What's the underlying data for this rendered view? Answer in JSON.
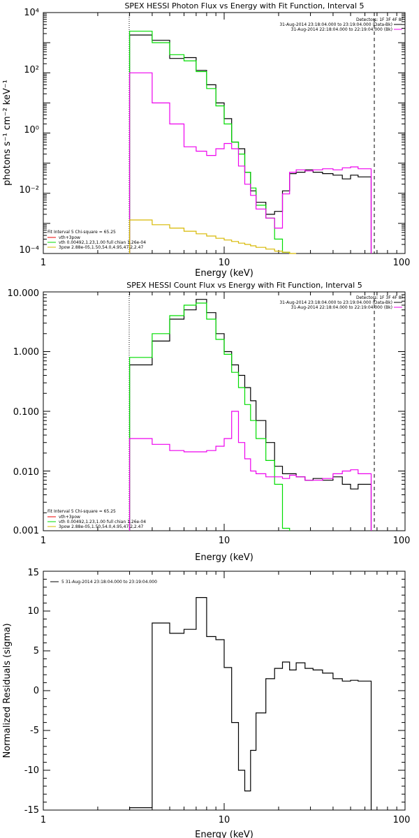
{
  "colors": {
    "data": "#000000",
    "model": "#ee00ee",
    "vth": "#00dd00",
    "pow": "#d7b800",
    "total_red": "#ee0000",
    "background": "#ffffff"
  },
  "chart_data": [
    {
      "type": "line",
      "step": true,
      "title": "SPEX HESSI Photon Flux vs Energy with Fit Function, Interval 5",
      "xlabel": "Energy (keV)",
      "ylabel": "photons s⁻¹ cm⁻² keV⁻¹",
      "xscale": "log",
      "yscale": "log",
      "xlim": [
        1,
        100
      ],
      "ylim": [
        0.0001,
        10000
      ],
      "x_ticks": [
        "1",
        "10",
        "100"
      ],
      "y_ticks": [
        "10⁻⁴",
        "10⁻²",
        "10⁰",
        "10²",
        "10⁴"
      ],
      "fit_range": [
        3,
        65
      ],
      "legend_top_right": {
        "header": "Detectors: 1F 3F 4F 8F",
        "entries": [
          "31-Aug-2014 23:18:04.000 to 23:19:04.000 (Data-Bk)",
          "31-Aug-2014 22:18:04.000 to 22:19:04.000 (Bk)"
        ]
      },
      "legend_bottom_left": {
        "header": "Fit Interval 5   Chi-square = 65.25",
        "entries": [
          "vth+3pow",
          "vth 0.00492,1.23,1.00  full chian 1.26e-04",
          "3pow 2.88e-05,1.50,54.0,4.95,47.2,2.47"
        ]
      },
      "edges": [
        3,
        4,
        5,
        6,
        7,
        8,
        9,
        10,
        11,
        12,
        13,
        14,
        15,
        17,
        19,
        21,
        23,
        25,
        28,
        31,
        35,
        40,
        45,
        50,
        55,
        65
      ],
      "series": [
        {
          "label": "Data-Bk",
          "color": "#000000",
          "values": [
            1800,
            1200,
            300,
            320,
            120,
            40,
            10,
            3.0,
            0.5,
            0.3,
            0.05,
            0.012,
            0.005,
            0.002,
            0.0025,
            0.012,
            0.045,
            0.05,
            0.06,
            0.05,
            0.045,
            0.04,
            0.03,
            0.04,
            0.035
          ]
        },
        {
          "label": "vth+3pow",
          "color": "#00dd00",
          "values": [
            2400,
            1000,
            400,
            250,
            110,
            30,
            8,
            2.0,
            0.5,
            0.2,
            0.05,
            0.015,
            0.004,
            0.0015,
            0.0003,
            0.00011
          ]
        },
        {
          "label": "Bk",
          "color": "#ee00ee",
          "values": [
            100,
            10,
            2,
            0.35,
            0.25,
            0.18,
            0.3,
            0.45,
            0.3,
            0.08,
            0.02,
            0.0085,
            0.003,
            0.0015,
            0.0007,
            0.0095,
            0.05,
            0.06,
            0.055,
            0.06,
            0.065,
            0.06,
            0.07,
            0.075,
            0.065
          ]
        },
        {
          "label": "3pow",
          "color": "#d7b800",
          "values": [
            0.0013,
            0.0009,
            0.0007,
            0.00055,
            0.00045,
            0.00038,
            0.00032,
            0.00028,
            0.00025,
            0.00022,
            0.0002,
            0.00018,
            0.00016,
            0.00014,
            0.00012,
            0.00011,
            0.0001
          ]
        }
      ]
    },
    {
      "type": "line",
      "step": true,
      "title": "SPEX HESSI Count Flux vs Energy with Fit Function, Interval 5",
      "xlabel": "Energy (keV)",
      "ylabel": "",
      "xscale": "log",
      "yscale": "log",
      "xlim": [
        1,
        100
      ],
      "ylim": [
        0.001,
        10
      ],
      "x_ticks": [
        "1",
        "10",
        "100"
      ],
      "y_ticks": [
        "0.001",
        "0.010",
        "0.100",
        "1.000",
        "10.000"
      ],
      "fit_range": [
        3,
        65
      ],
      "legend_top_right": {
        "header": "Detectors: 1F 3F 4F 8F",
        "entries": [
          "31-Aug-2014 23:18:04.000 to 23:19:04.000 (Data-Bk)",
          "31-Aug-2014 22:18:04.000 to 22:19:04.000 (Bk)"
        ]
      },
      "legend_bottom_left": {
        "header": "Fit Interval 5   Chi-square = 65.25",
        "entries": [
          "vth+3pow",
          "vth 0.00492,1.23,1.00  full chian 1.26e-04",
          "3pow 2.88e-05,1.50,54.0,4.95,47.2,2.47"
        ]
      },
      "edges": [
        3,
        4,
        5,
        6,
        7,
        8,
        9,
        10,
        11,
        12,
        13,
        14,
        15,
        17,
        19,
        21,
        23,
        25,
        28,
        31,
        35,
        40,
        45,
        50,
        55,
        65
      ],
      "series": [
        {
          "label": "Data-Bk",
          "color": "#000000",
          "values": [
            0.6,
            1.5,
            3.5,
            5.0,
            7.5,
            4.5,
            2.0,
            1.0,
            0.6,
            0.4,
            0.25,
            0.15,
            0.07,
            0.03,
            0.012,
            0.009,
            0.009,
            0.008,
            0.007,
            0.0075,
            0.007,
            0.008,
            0.006,
            0.005,
            0.006
          ]
        },
        {
          "label": "vth+3pow",
          "color": "#00dd00",
          "values": [
            0.8,
            2.0,
            4.0,
            6.0,
            6.5,
            3.5,
            1.6,
            0.9,
            0.45,
            0.25,
            0.13,
            0.07,
            0.035,
            0.015,
            0.006,
            0.0011
          ]
        },
        {
          "label": "Bk",
          "color": "#ee00ee",
          "values": [
            0.035,
            0.028,
            0.022,
            0.021,
            0.021,
            0.022,
            0.026,
            0.035,
            0.1,
            0.03,
            0.016,
            0.01,
            0.009,
            0.008,
            0.008,
            0.0075,
            0.0085,
            0.008,
            0.007,
            0.007,
            0.0075,
            0.009,
            0.01,
            0.0105,
            0.009
          ]
        }
      ]
    },
    {
      "type": "line",
      "step": true,
      "title": "",
      "xlabel": "Energy (keV)",
      "ylabel": "Normalized Residuals (sigma)",
      "xscale": "log",
      "yscale": "linear",
      "xlim": [
        1,
        100
      ],
      "ylim": [
        -15,
        15
      ],
      "x_ticks": [
        "1",
        "10",
        "100"
      ],
      "y_ticks": [
        "-15",
        "-10",
        "-5",
        "0",
        "5",
        "10",
        "15"
      ],
      "legend": "5  31-Aug-2014 23:18:04.000 to 23:19:04.000",
      "edges": [
        3,
        4,
        5,
        6,
        7,
        8,
        9,
        10,
        11,
        12,
        13,
        14,
        15,
        17,
        19,
        21,
        23,
        25,
        28,
        31,
        35,
        40,
        45,
        50,
        55,
        65
      ],
      "series": [
        {
          "label": "residuals",
          "color": "#000000",
          "values": [
            -14.7,
            8.5,
            7.2,
            7.7,
            11.7,
            6.8,
            6.4,
            2.9,
            -4.0,
            -10.0,
            -12.6,
            -7.5,
            -2.8,
            1.5,
            2.8,
            3.6,
            2.6,
            3.5,
            2.8,
            2.6,
            2.2,
            1.5,
            1.2,
            1.3,
            1.2
          ]
        }
      ]
    }
  ]
}
